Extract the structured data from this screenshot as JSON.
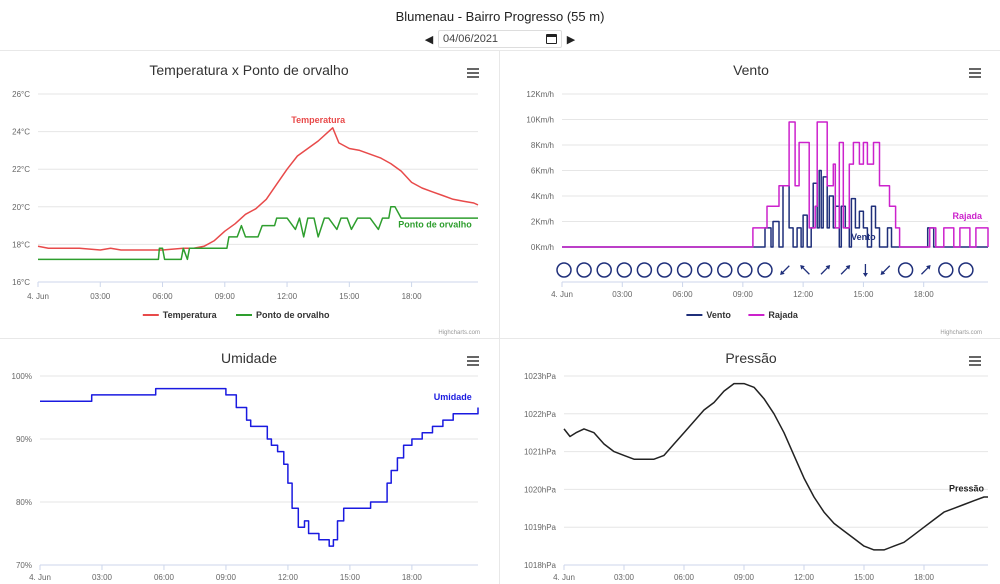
{
  "header": {
    "title": "Blumenau - Bairro Progresso (55 m)",
    "date_value": "04/06/2021",
    "prev_icon": "triangle-left-icon",
    "next_icon": "triangle-right-icon",
    "calendar_icon": "calendar-icon"
  },
  "chart_data": [
    {
      "type": "line",
      "title": "Temperatura x Ponto de orvalho",
      "credits": "Highcharts.com",
      "menu_icon": "hamburger-menu-icon",
      "x_ticks": [
        "4. Jun",
        "03:00",
        "06:00",
        "09:00",
        "12:00",
        "15:00",
        "18:00"
      ],
      "x_range": [
        0,
        21.2
      ],
      "y_ticks": [
        "16°C",
        "18°C",
        "20°C",
        "22°C",
        "24°C",
        "26°C"
      ],
      "ylim": [
        16,
        26
      ],
      "legend_position": "bottom-center",
      "series": [
        {
          "name": "Temperatura",
          "color": "#e84a4a",
          "label": "Temperatura",
          "x": [
            0,
            0.5,
            1,
            2,
            3,
            3.5,
            4,
            5,
            6,
            7,
            7.5,
            8,
            8.5,
            9,
            9.5,
            10,
            10.5,
            11,
            11.5,
            12,
            12.5,
            13,
            13.5,
            14,
            14.2,
            14.5,
            15,
            15.5,
            16,
            16.5,
            17,
            17.5,
            18,
            18.5,
            19,
            19.5,
            20,
            20.5,
            21,
            21.2
          ],
          "values": [
            17.9,
            17.8,
            17.8,
            17.8,
            17.7,
            17.8,
            17.7,
            17.7,
            17.7,
            17.8,
            17.8,
            17.9,
            18.2,
            18.7,
            19.1,
            19.6,
            19.9,
            20.4,
            21.2,
            22.0,
            22.7,
            23.1,
            23.5,
            24.0,
            24.2,
            23.4,
            23.1,
            23.0,
            22.8,
            22.6,
            22.3,
            21.9,
            21.3,
            21.0,
            20.8,
            20.6,
            20.4,
            20.3,
            20.2,
            20.1
          ]
        },
        {
          "name": "Ponto de orvalho",
          "color": "#2e9e2e",
          "label": "Ponto de orvalho",
          "x": [
            0,
            2,
            4,
            5.8,
            5.85,
            6,
            6.1,
            6.9,
            7.0,
            7.2,
            7.3,
            8,
            8.5,
            9.1,
            9.2,
            9.6,
            9.8,
            10.0,
            10.2,
            10.6,
            10.8,
            11.4,
            11.5,
            12,
            12.4,
            12.6,
            12.8,
            13.0,
            13.3,
            13.5,
            13.8,
            14.0,
            14.4,
            14.6,
            14.9,
            15.1,
            15.4,
            15.6,
            16,
            16.4,
            16.6,
            16.9,
            17.0,
            17.2,
            17.5,
            18,
            19,
            20,
            21.2
          ],
          "values": [
            17.2,
            17.2,
            17.2,
            17.2,
            17.8,
            17.8,
            17.2,
            17.2,
            17.8,
            17.2,
            17.8,
            17.8,
            17.8,
            17.8,
            18.4,
            18.4,
            19.0,
            18.4,
            18.4,
            18.4,
            19.0,
            19.0,
            19.4,
            19.4,
            18.8,
            19.4,
            18.4,
            19.4,
            19.4,
            18.4,
            19.4,
            19.4,
            18.8,
            19.4,
            19.4,
            18.8,
            19.4,
            19.4,
            19.4,
            18.8,
            19.4,
            19.4,
            20.0,
            20.0,
            19.4,
            19.4,
            19.4,
            19.4,
            19.4
          ]
        }
      ]
    },
    {
      "type": "line",
      "title": "Vento",
      "credits": "Highcharts.com",
      "menu_icon": "hamburger-menu-icon",
      "x_ticks": [
        "4. Jun",
        "03:00",
        "06:00",
        "09:00",
        "12:00",
        "15:00",
        "18:00"
      ],
      "x_range": [
        0,
        21.2
      ],
      "y_ticks": [
        "0Km/h",
        "2Km/h",
        "4Km/h",
        "6Km/h",
        "8Km/h",
        "10Km/h",
        "12Km/h"
      ],
      "ylim": [
        0,
        12
      ],
      "legend_position": "bottom-center",
      "wind_direction_icons": [
        "calm",
        "calm",
        "calm",
        "calm",
        "calm",
        "calm",
        "calm",
        "calm",
        "calm",
        "calm",
        "calm",
        "SW",
        "NW",
        "NE",
        "NE",
        "S",
        "SW",
        "calm",
        "NE",
        "calm",
        "calm"
      ],
      "series": [
        {
          "name": "Vento",
          "color": "#1f2f7a",
          "label": "Vento",
          "x": [
            0,
            9,
            9.5,
            10,
            10.1,
            10.4,
            10.5,
            10.8,
            11.0,
            11.3,
            11.5,
            11.7,
            11.9,
            12.0,
            12.2,
            12.4,
            12.5,
            12.7,
            12.8,
            12.9,
            13.0,
            13.2,
            13.3,
            13.5,
            13.6,
            13.8,
            13.9,
            14.1,
            14.3,
            14.4,
            14.6,
            14.8,
            15.0,
            15.2,
            15.4,
            15.6,
            15.8,
            16.0,
            16.2,
            16.4,
            16.6,
            17.0,
            17.5,
            18,
            18.2,
            18.5,
            19,
            20,
            21.2
          ],
          "values": [
            0,
            0,
            0,
            0,
            1.5,
            0,
            2.0,
            0,
            4.8,
            1.5,
            0,
            1.5,
            0,
            2.5,
            0,
            1.5,
            5.0,
            1.5,
            6.0,
            1.5,
            5.5,
            1.5,
            4.0,
            1.5,
            3.2,
            0,
            3.2,
            1.5,
            0,
            3.8,
            1.5,
            2.8,
            1.5,
            0,
            3.2,
            1.5,
            0,
            0,
            1.5,
            0,
            0,
            0,
            0,
            0,
            1.5,
            0,
            0,
            0,
            0
          ]
        },
        {
          "name": "Rajada",
          "color": "#cc22cc",
          "label": "Rajada",
          "x": [
            0,
            9,
            9.4,
            9.5,
            10.1,
            10.2,
            10.6,
            10.8,
            11.2,
            11.3,
            11.6,
            11.8,
            12.0,
            12.3,
            12.6,
            12.7,
            13.0,
            13.2,
            13.5,
            13.6,
            13.8,
            14.0,
            14.3,
            14.5,
            14.8,
            15.0,
            15.2,
            15.5,
            15.8,
            16.0,
            16.3,
            16.6,
            16.8,
            17.5,
            18,
            18.3,
            18.6,
            19,
            19.2,
            19.5,
            19.8,
            20.3,
            20.6,
            21.2
          ],
          "values": [
            0,
            0,
            0,
            1.5,
            1.5,
            3.2,
            3.2,
            4.8,
            4.8,
            9.8,
            4.8,
            8.2,
            8.2,
            1.5,
            3.2,
            9.8,
            9.8,
            4.8,
            6.5,
            1.5,
            8.2,
            1.5,
            6.5,
            8.2,
            6.5,
            8.2,
            6.5,
            8.2,
            4.8,
            4.8,
            3.2,
            1.5,
            0,
            0,
            0,
            1.5,
            0,
            1.5,
            1.5,
            0,
            1.5,
            0,
            1.5,
            0
          ]
        }
      ]
    },
    {
      "type": "line",
      "title": "Umidade",
      "menu_icon": "hamburger-menu-icon",
      "x_ticks": [
        "4. Jun",
        "03:00",
        "06:00",
        "09:00",
        "12:00",
        "15:00",
        "18:00"
      ],
      "x_range": [
        0,
        21.2
      ],
      "y_ticks": [
        "70%",
        "80%",
        "90%",
        "100%"
      ],
      "ylim": [
        70,
        100
      ],
      "series": [
        {
          "name": "Umidade",
          "color": "#1a1ae0",
          "label": "Umidade",
          "x": [
            0,
            1,
            2,
            2.5,
            3,
            4,
            5.5,
            5.6,
            6,
            7,
            8,
            8.5,
            9,
            9.2,
            9.5,
            10,
            10.2,
            10.5,
            11,
            11.2,
            11.5,
            11.8,
            12.0,
            12.2,
            12.5,
            12.8,
            13.0,
            13.3,
            13.5,
            13.8,
            14.0,
            14.2,
            14.4,
            14.7,
            15.0,
            15.5,
            16.0,
            16.5,
            16.8,
            17.0,
            17.3,
            17.6,
            18.0,
            18.5,
            19.0,
            19.5,
            20.0,
            20.5,
            21.0,
            21.2
          ],
          "values": [
            96,
            96,
            96,
            97,
            97,
            97,
            97,
            98,
            98,
            98,
            98,
            98,
            97,
            97,
            95,
            93,
            92,
            92,
            90,
            89,
            88,
            86,
            83,
            79,
            76,
            77,
            75,
            75,
            74,
            74,
            73,
            74,
            77,
            79,
            79,
            79,
            80,
            80,
            83,
            85,
            87,
            89,
            90,
            91,
            92,
            93,
            94,
            94,
            94,
            95
          ]
        }
      ]
    },
    {
      "type": "line",
      "title": "Pressão",
      "menu_icon": "hamburger-menu-icon",
      "x_ticks": [
        "4. Jun",
        "03:00",
        "06:00",
        "09:00",
        "12:00",
        "15:00",
        "18:00"
      ],
      "x_range": [
        0,
        21.2
      ],
      "y_ticks": [
        "1018hPa",
        "1019hPa",
        "1020hPa",
        "1021hPa",
        "1022hPa",
        "1023hPa"
      ],
      "ylim": [
        1018,
        1023
      ],
      "series": [
        {
          "name": "Pressão",
          "color": "#222222",
          "label": "Pressão",
          "x": [
            0,
            0.3,
            0.6,
            1,
            1.5,
            2,
            2.5,
            3,
            3.5,
            4,
            4.5,
            5,
            5.5,
            6,
            6.5,
            7,
            7.5,
            8,
            8.5,
            9,
            9.5,
            10,
            10.5,
            11,
            11.5,
            12,
            12.5,
            13,
            13.5,
            14,
            14.5,
            15,
            15.5,
            16,
            16.5,
            17,
            17.5,
            18,
            18.5,
            19,
            19.5,
            20,
            20.5,
            21,
            21.2
          ],
          "values": [
            1021.6,
            1021.4,
            1021.5,
            1021.6,
            1021.5,
            1021.2,
            1021.0,
            1020.9,
            1020.8,
            1020.8,
            1020.8,
            1020.9,
            1021.2,
            1021.5,
            1021.8,
            1022.1,
            1022.3,
            1022.6,
            1022.8,
            1022.8,
            1022.7,
            1022.4,
            1022.0,
            1021.5,
            1020.9,
            1020.3,
            1019.8,
            1019.4,
            1019.1,
            1018.9,
            1018.7,
            1018.5,
            1018.4,
            1018.4,
            1018.5,
            1018.6,
            1018.8,
            1019.0,
            1019.2,
            1019.4,
            1019.5,
            1019.6,
            1019.7,
            1019.8,
            1019.8
          ]
        }
      ]
    }
  ]
}
